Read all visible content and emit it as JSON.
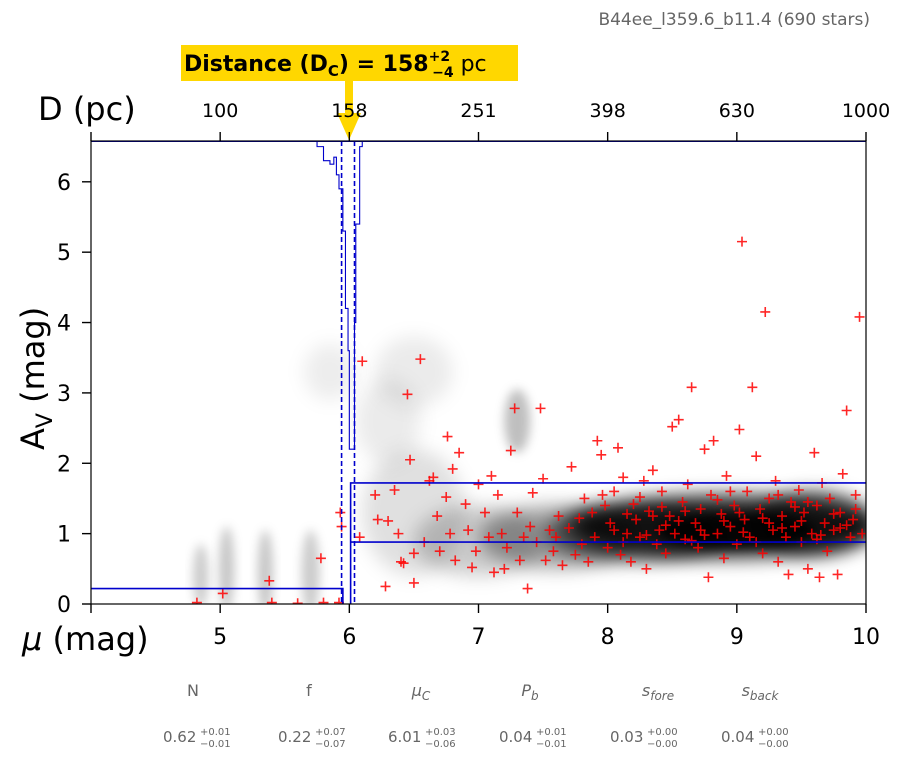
{
  "header": {
    "title": "B44ee_l359.6_b11.4 (690 stars)",
    "distance_label_prefix": "Distance (D",
    "distance_label_sub": "C",
    "distance_label_eq": ") = 158",
    "distance_label_sup": "+2",
    "distance_label_low": "−4",
    "distance_label_unit": " pc"
  },
  "chart_data": {
    "type": "scatter",
    "title": "B44ee_l359.6_b11.4 (690 stars)",
    "xlabel": "μ (mag)",
    "ylabel": "A_V (mag)",
    "ylabel_main": "A",
    "ylabel_sub": "V",
    "ylabel_unit": " (mag)",
    "xlabel_mu": "μ",
    "xlabel_unit": " (mag)",
    "top_axis_label": "D (pc)",
    "xlim": [
      4.0,
      10.0
    ],
    "ylim": [
      0,
      6.58
    ],
    "x_ticks": [
      5,
      6,
      7,
      8,
      9,
      10
    ],
    "x_tick_labels": [
      "5",
      "6",
      "7",
      "8",
      "9",
      "10"
    ],
    "y_ticks": [
      0,
      1,
      2,
      3,
      4,
      5,
      6
    ],
    "y_tick_labels": [
      "0",
      "1",
      "2",
      "3",
      "4",
      "5",
      "6"
    ],
    "top_ticks_mu": [
      5.0,
      6.0,
      7.0,
      8.0,
      9.0,
      10.0
    ],
    "top_tick_labels": [
      "100",
      "158",
      "251",
      "398",
      "630",
      "1000"
    ],
    "distance_modulus_cloud": 6.0,
    "distance_pc": 158,
    "dashed_lines_mu": [
      5.94,
      6.04
    ],
    "extinction_model": {
      "foreground_av": 0.22,
      "background_low_av": 0.88,
      "background_high_av": 1.72,
      "jump_mu": 6.01
    },
    "star_points": [
      [
        4.82,
        0.02
      ],
      [
        5.02,
        0.15
      ],
      [
        5.38,
        0.33
      ],
      [
        5.4,
        0.02
      ],
      [
        5.6,
        0.01
      ],
      [
        5.78,
        0.65
      ],
      [
        5.8,
        0.02
      ],
      [
        5.93,
        1.3
      ],
      [
        5.94,
        1.1
      ],
      [
        5.92,
        0.02
      ],
      [
        6.08,
        0.95
      ],
      [
        6.1,
        3.45
      ],
      [
        6.2,
        1.55
      ],
      [
        6.22,
        1.2
      ],
      [
        6.28,
        0.25
      ],
      [
        6.3,
        1.18
      ],
      [
        6.35,
        1.62
      ],
      [
        6.38,
        1.0
      ],
      [
        6.4,
        0.6
      ],
      [
        6.42,
        0.58
      ],
      [
        6.45,
        2.98
      ],
      [
        6.47,
        2.05
      ],
      [
        6.5,
        0.72
      ],
      [
        6.5,
        0.3
      ],
      [
        6.55,
        3.48
      ],
      [
        6.58,
        0.88
      ],
      [
        6.62,
        1.75
      ],
      [
        6.65,
        1.8
      ],
      [
        6.68,
        1.25
      ],
      [
        6.7,
        0.75
      ],
      [
        6.75,
        1.52
      ],
      [
        6.76,
        2.38
      ],
      [
        6.78,
        1.0
      ],
      [
        6.8,
        1.92
      ],
      [
        6.82,
        0.62
      ],
      [
        6.85,
        2.15
      ],
      [
        6.9,
        1.42
      ],
      [
        6.92,
        1.05
      ],
      [
        6.95,
        0.52
      ],
      [
        6.98,
        0.75
      ],
      [
        7.0,
        1.7
      ],
      [
        7.05,
        1.3
      ],
      [
        7.08,
        0.95
      ],
      [
        7.1,
        1.82
      ],
      [
        7.12,
        0.45
      ],
      [
        7.15,
        1.55
      ],
      [
        7.18,
        1.0
      ],
      [
        7.2,
        0.5
      ],
      [
        7.22,
        0.8
      ],
      [
        7.25,
        2.18
      ],
      [
        7.28,
        2.78
      ],
      [
        7.3,
        1.3
      ],
      [
        7.32,
        0.62
      ],
      [
        7.35,
        0.95
      ],
      [
        7.38,
        0.22
      ],
      [
        7.4,
        1.1
      ],
      [
        7.42,
        1.58
      ],
      [
        7.45,
        0.88
      ],
      [
        7.48,
        2.78
      ],
      [
        7.5,
        1.78
      ],
      [
        7.52,
        0.62
      ],
      [
        7.55,
        1.05
      ],
      [
        7.58,
        0.75
      ],
      [
        7.6,
        0.95
      ],
      [
        7.62,
        1.25
      ],
      [
        7.65,
        0.55
      ],
      [
        7.7,
        1.08
      ],
      [
        7.72,
        1.95
      ],
      [
        7.75,
        0.7
      ],
      [
        7.78,
        1.22
      ],
      [
        7.8,
        0.85
      ],
      [
        7.82,
        1.5
      ],
      [
        7.85,
        0.6
      ],
      [
        7.88,
        1.3
      ],
      [
        7.9,
        0.95
      ],
      [
        7.92,
        2.32
      ],
      [
        7.95,
        2.12
      ],
      [
        7.98,
        1.4
      ],
      [
        8.0,
        0.8
      ],
      [
        8.02,
        1.15
      ],
      [
        8.05,
        1.6
      ],
      [
        8.08,
        2.22
      ],
      [
        8.1,
        0.7
      ],
      [
        8.12,
        1.8
      ],
      [
        8.15,
        1.0
      ],
      [
        8.18,
        0.6
      ],
      [
        8.2,
        1.42
      ],
      [
        8.22,
        1.2
      ],
      [
        8.25,
        0.95
      ],
      [
        8.28,
        1.75
      ],
      [
        8.3,
        0.5
      ],
      [
        8.32,
        1.32
      ],
      [
        8.35,
        1.9
      ],
      [
        8.38,
        0.85
      ],
      [
        8.4,
        1.05
      ],
      [
        8.42,
        1.6
      ],
      [
        8.45,
        0.72
      ],
      [
        8.48,
        1.25
      ],
      [
        8.5,
        2.52
      ],
      [
        8.52,
        1.0
      ],
      [
        8.55,
        2.62
      ],
      [
        8.58,
        1.45
      ],
      [
        8.6,
        0.92
      ],
      [
        8.62,
        1.7
      ],
      [
        8.65,
        3.08
      ],
      [
        8.68,
        1.15
      ],
      [
        8.7,
        0.8
      ],
      [
        8.72,
        1.35
      ],
      [
        8.75,
        2.2
      ],
      [
        8.78,
        0.38
      ],
      [
        8.8,
        1.55
      ],
      [
        8.82,
        2.32
      ],
      [
        8.85,
        1.0
      ],
      [
        8.88,
        1.28
      ],
      [
        8.9,
        0.65
      ],
      [
        8.92,
        1.82
      ],
      [
        8.95,
        1.1
      ],
      [
        8.98,
        1.4
      ],
      [
        9.0,
        0.85
      ],
      [
        9.02,
        2.48
      ],
      [
        9.04,
        5.15
      ],
      [
        9.06,
        1.2
      ],
      [
        9.08,
        1.6
      ],
      [
        9.1,
        0.95
      ],
      [
        9.12,
        3.08
      ],
      [
        9.15,
        2.1
      ],
      [
        9.18,
        1.35
      ],
      [
        9.2,
        0.72
      ],
      [
        9.22,
        4.15
      ],
      [
        9.25,
        1.5
      ],
      [
        9.28,
        1.05
      ],
      [
        9.3,
        1.75
      ],
      [
        9.32,
        0.6
      ],
      [
        9.35,
        1.25
      ],
      [
        9.38,
        0.95
      ],
      [
        9.4,
        0.42
      ],
      [
        9.42,
        1.45
      ],
      [
        9.45,
        1.1
      ],
      [
        9.48,
        1.62
      ],
      [
        9.5,
        0.88
      ],
      [
        9.52,
        1.3
      ],
      [
        9.55,
        0.5
      ],
      [
        9.58,
        1.0
      ],
      [
        9.6,
        2.15
      ],
      [
        9.62,
        1.4
      ],
      [
        9.64,
        0.38
      ],
      [
        9.66,
        1.72
      ],
      [
        9.68,
        1.15
      ],
      [
        9.7,
        0.75
      ],
      [
        9.72,
        1.5
      ],
      [
        9.75,
        1.05
      ],
      [
        9.78,
        0.42
      ],
      [
        9.8,
        1.3
      ],
      [
        9.82,
        1.85
      ],
      [
        9.85,
        2.75
      ],
      [
        9.88,
        0.95
      ],
      [
        9.9,
        1.2
      ],
      [
        9.92,
        1.55
      ],
      [
        9.95,
        4.08
      ],
      [
        9.97,
        1.0
      ],
      [
        8.15,
        1.28
      ],
      [
        8.3,
        0.98
      ],
      [
        8.45,
        1.12
      ],
      [
        8.6,
        1.32
      ],
      [
        8.75,
        0.98
      ],
      [
        8.9,
        1.18
      ],
      [
        9.05,
        1.02
      ],
      [
        9.2,
        1.22
      ],
      [
        9.35,
        1.08
      ],
      [
        9.5,
        1.18
      ],
      [
        9.65,
        0.98
      ],
      [
        9.8,
        1.08
      ],
      [
        8.25,
        1.52
      ],
      [
        8.55,
        1.18
      ],
      [
        8.85,
        1.48
      ],
      [
        9.15,
        0.88
      ],
      [
        9.45,
        1.38
      ],
      [
        9.75,
        1.28
      ],
      [
        8.05,
        1.05
      ],
      [
        8.35,
        1.25
      ],
      [
        8.65,
        0.9
      ],
      [
        8.95,
        1.6
      ],
      [
        9.25,
        1.15
      ],
      [
        9.55,
        1.45
      ],
      [
        9.85,
        1.12
      ],
      [
        7.96,
        1.55
      ],
      [
        8.12,
        0.88
      ],
      [
        8.42,
        1.38
      ],
      [
        8.72,
        1.05
      ],
      [
        9.02,
        1.3
      ],
      [
        9.32,
        1.55
      ],
      [
        9.62,
        0.92
      ],
      [
        9.92,
        1.35
      ]
    ]
  },
  "parameters": [
    {
      "name": "N",
      "italic": false,
      "value": "0.62",
      "plus": "+0.01",
      "minus": "−0.01"
    },
    {
      "name": "f",
      "italic": false,
      "value": "0.22",
      "plus": "+0.07",
      "minus": "−0.07"
    },
    {
      "name": "μ",
      "sub": "C",
      "italic": true,
      "value": "6.01",
      "plus": "+0.03",
      "minus": "−0.06"
    },
    {
      "name": "P",
      "sub": "b",
      "italic": true,
      "value": "0.04",
      "plus": "+0.01",
      "minus": "−0.01"
    },
    {
      "name": "s",
      "sub": "fore",
      "italic": true,
      "value": "0.03",
      "plus": "+0.00",
      "minus": "−0.00"
    },
    {
      "name": "s",
      "sub": "back",
      "italic": true,
      "value": "0.04",
      "plus": "+0.00",
      "minus": "−0.00"
    }
  ],
  "colors": {
    "points": "#ff0000",
    "model_line": "#0000cc",
    "label_bg": "#ffd700",
    "arrow": "#ffd700"
  }
}
